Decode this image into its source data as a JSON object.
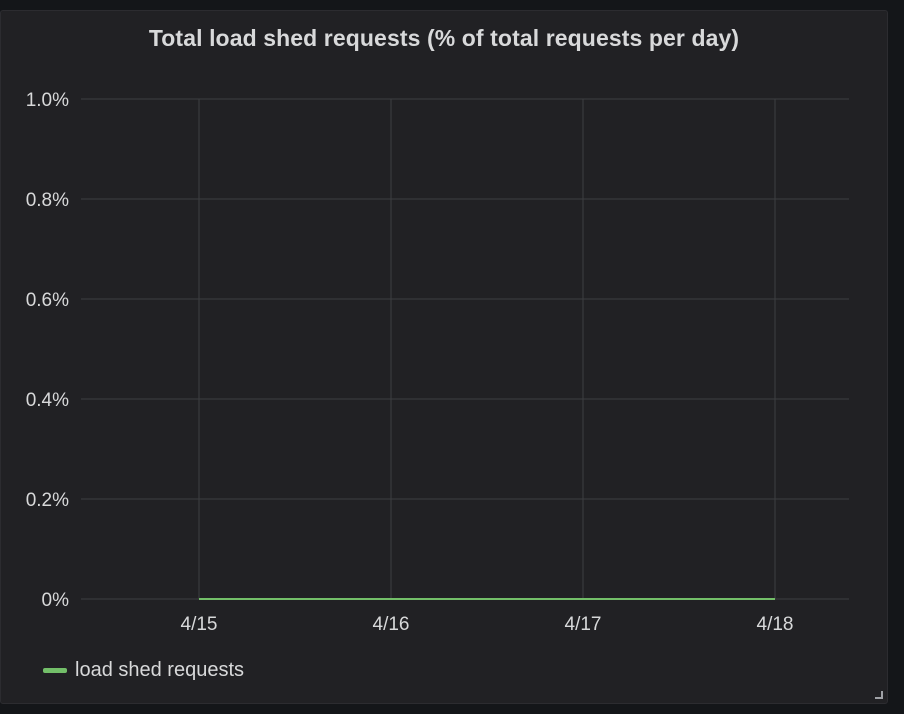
{
  "panel": {
    "title": "Total load shed requests (% of total requests per day)"
  },
  "chart_data": {
    "type": "line",
    "title": "Total load shed requests (% of total requests per day)",
    "xlabel": "",
    "ylabel": "",
    "categories": [
      "4/15",
      "4/16",
      "4/17",
      "4/18"
    ],
    "y_ticks": [
      0,
      0.2,
      0.4,
      0.6,
      0.8,
      1.0
    ],
    "y_tick_labels": [
      "0%",
      "0.2%",
      "0.4%",
      "0.6%",
      "0.8%",
      "1.0%"
    ],
    "ylim": [
      0,
      1.0
    ],
    "grid": true,
    "legend_position": "bottom-left",
    "series": [
      {
        "name": "load shed requests",
        "color": "#73bf69",
        "values": [
          0,
          0,
          0,
          0
        ]
      }
    ]
  },
  "colors": {
    "panel_bg": "#212124",
    "grid": "#3d3e42",
    "text": "#d8d9da"
  }
}
